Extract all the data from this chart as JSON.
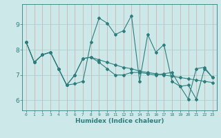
{
  "xlabel": "Humidex (Indice chaleur)",
  "bg_color": "#cce8e8",
  "line_color": "#2e7d7d",
  "grid_color": "#aacccc",
  "xlim": [
    -0.5,
    23.5
  ],
  "ylim": [
    5.6,
    9.8
  ],
  "xticks": [
    0,
    1,
    2,
    3,
    4,
    5,
    6,
    7,
    8,
    9,
    10,
    11,
    12,
    13,
    14,
    15,
    16,
    17,
    18,
    19,
    20,
    21,
    22,
    23
  ],
  "yticks": [
    6,
    7,
    8,
    9
  ],
  "series": [
    [
      8.3,
      7.5,
      7.8,
      7.9,
      7.25,
      6.6,
      6.65,
      6.75,
      8.3,
      9.25,
      9.05,
      8.6,
      8.75,
      9.35,
      6.75,
      8.6,
      7.9,
      8.2,
      6.75,
      6.55,
      6.6,
      6.05,
      7.25,
      6.9
    ],
    [
      8.3,
      7.5,
      7.8,
      7.9,
      7.25,
      6.6,
      7.0,
      7.65,
      7.7,
      7.6,
      7.5,
      7.4,
      7.3,
      7.25,
      7.15,
      7.1,
      7.05,
      7.0,
      6.95,
      6.9,
      6.85,
      6.8,
      6.75,
      6.7
    ],
    [
      8.3,
      7.5,
      7.8,
      7.9,
      7.25,
      6.6,
      7.0,
      7.65,
      7.7,
      7.5,
      7.25,
      7.0,
      7.0,
      7.1,
      7.1,
      7.05,
      7.0,
      7.05,
      7.1,
      6.55,
      6.05,
      7.25,
      7.3,
      6.9
    ]
  ]
}
